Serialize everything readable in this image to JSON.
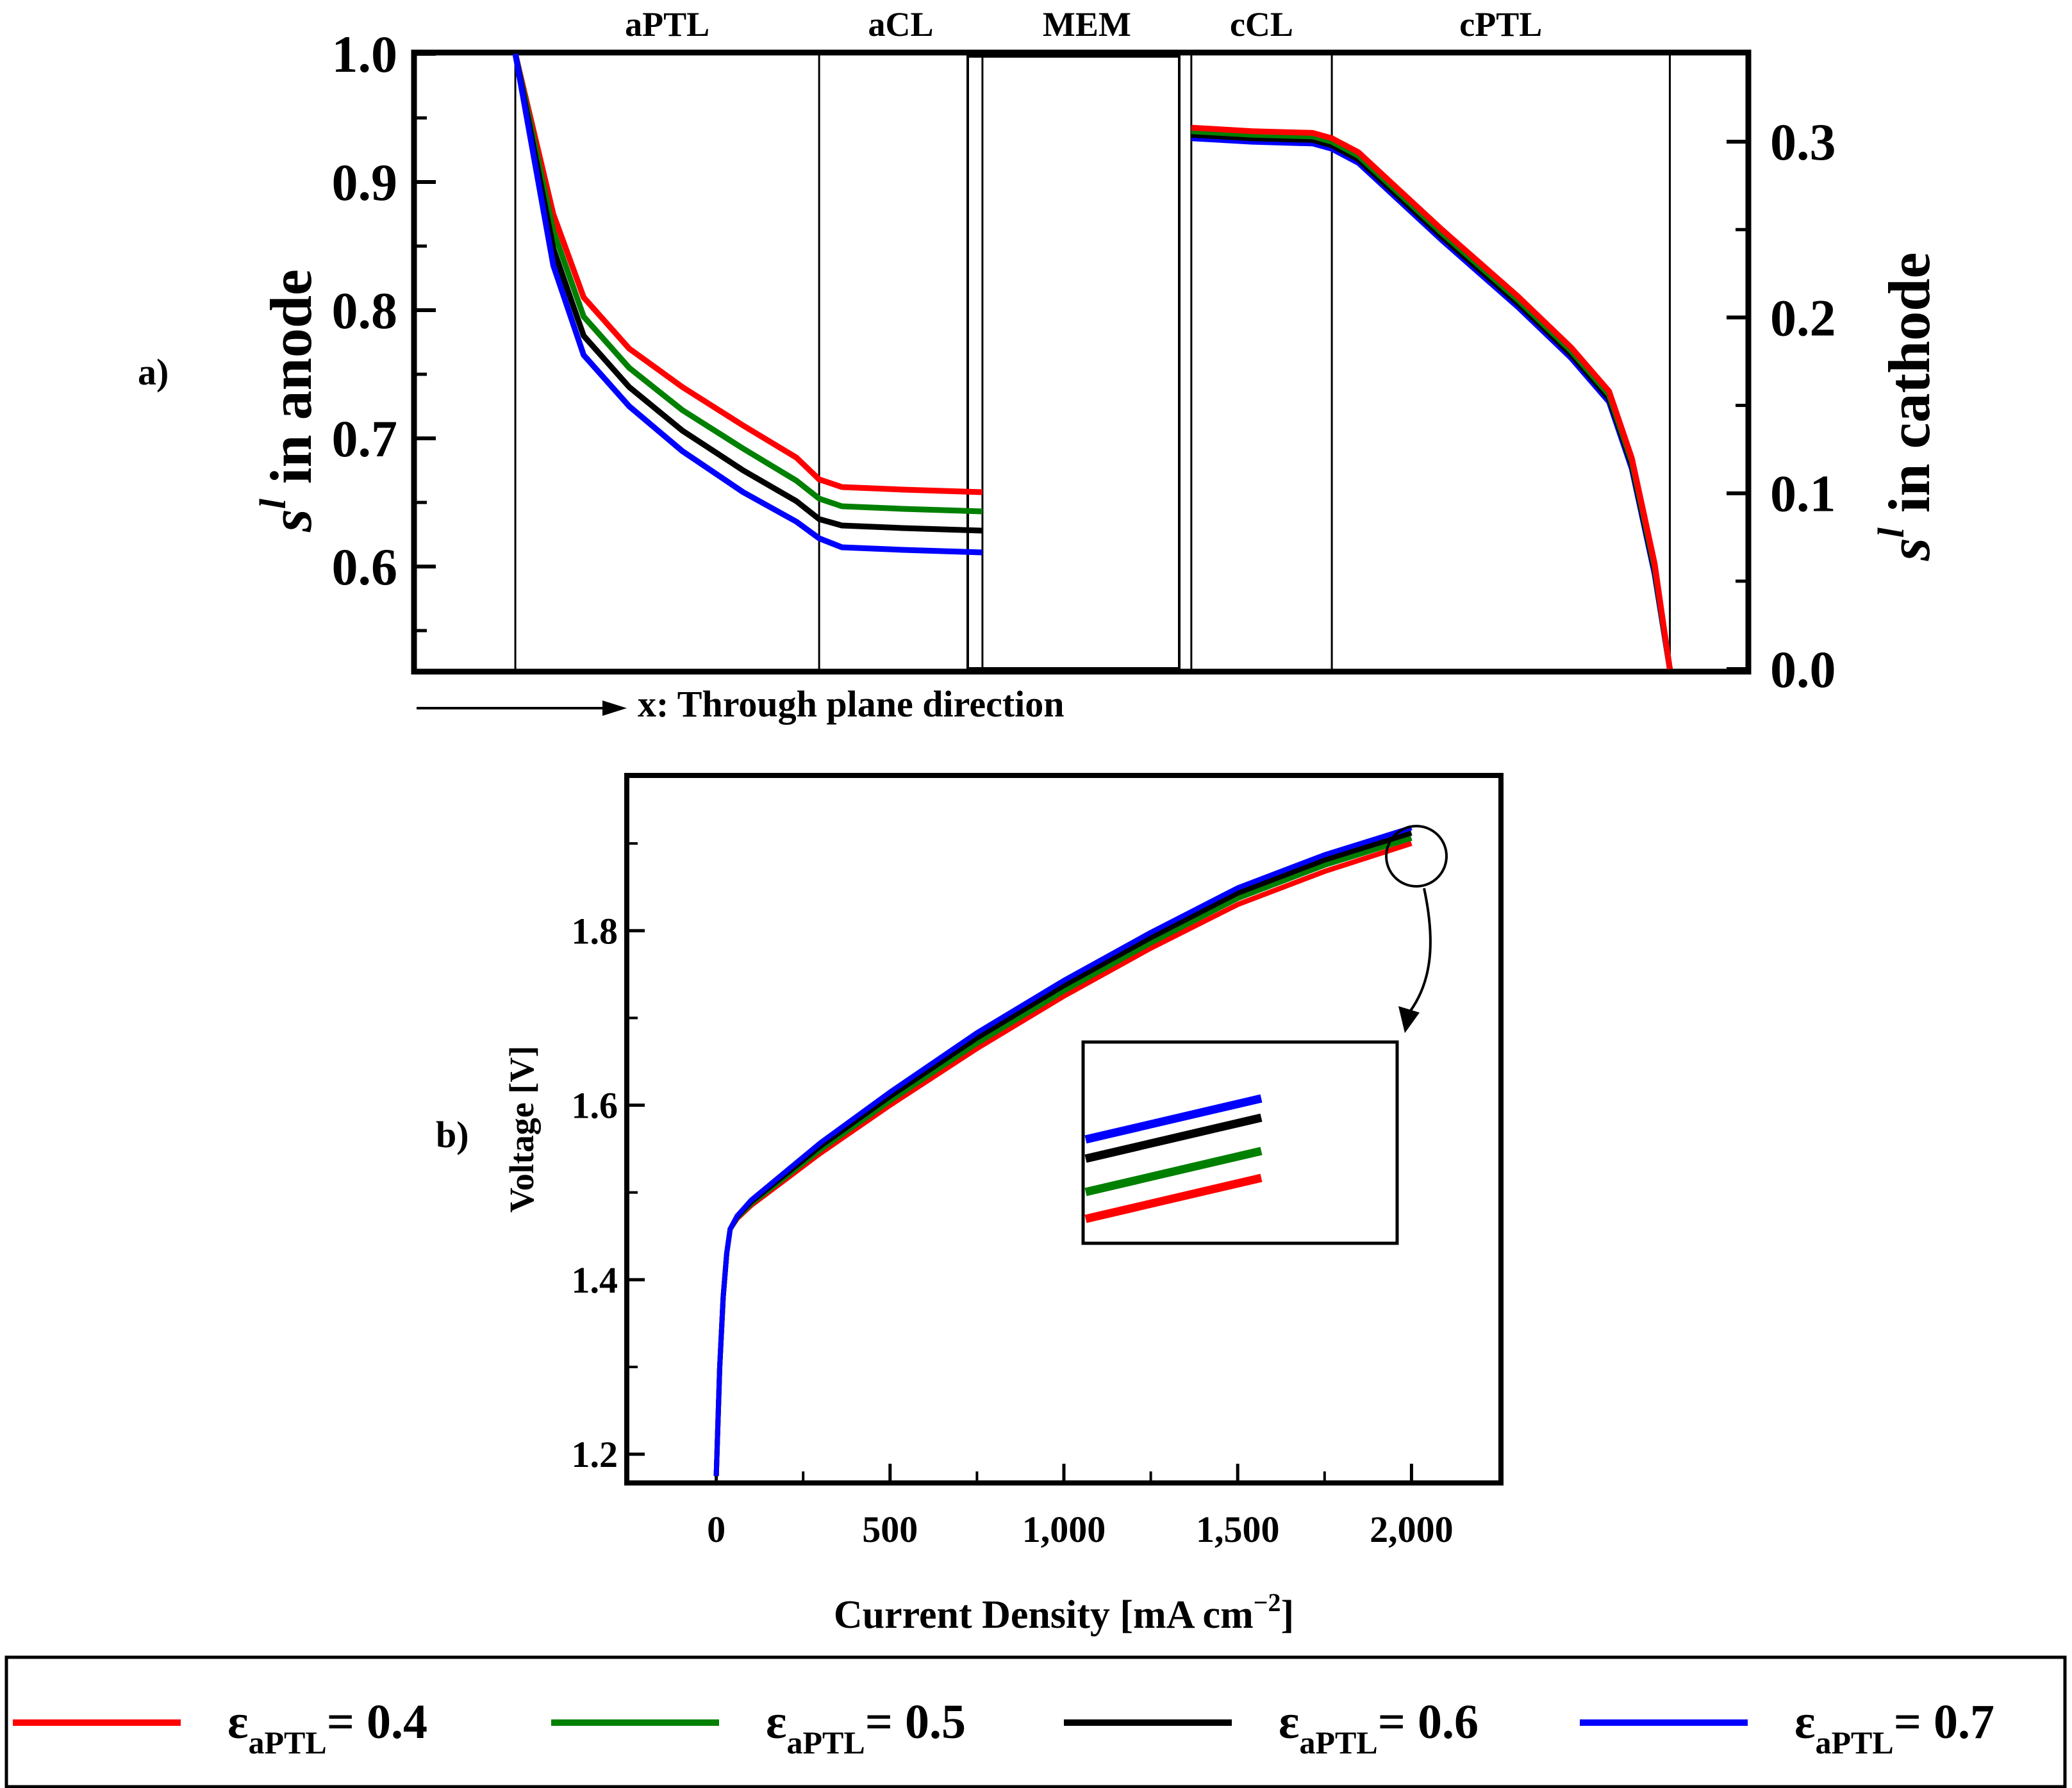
{
  "panel_labels": {
    "a": "a)",
    "b": "b)"
  },
  "direction_label": "x: Through plane direction",
  "colors": {
    "red": "#ff0000",
    "green": "#008000",
    "black": "#000000",
    "blue": "#0000ff"
  },
  "legend": {
    "prefix": "ε",
    "subscript": "aPTL",
    "entries": [
      {
        "value": "= 0.4",
        "color": "#ff0000"
      },
      {
        "value": "= 0.5",
        "color": "#008000"
      },
      {
        "value": "= 0.6",
        "color": "#000000"
      },
      {
        "value": "= 0.7",
        "color": "#0000ff"
      }
    ]
  },
  "chart_data": [
    {
      "id": "a",
      "type": "line",
      "regions": [
        "aPTL",
        "aCL",
        "MEM",
        "cCL",
        "cPTL"
      ],
      "region_boundaries": [
        0.13,
        0.53,
        0.745,
        1.02,
        1.205,
        1.65
      ],
      "xlim": [
        0.0,
        1.75
      ],
      "ylabel_left": {
        "base": "s",
        "sup": "l",
        "rest": " in anode"
      },
      "ylabel_right": {
        "base": "s",
        "sup": "l",
        "rest": " in cathode"
      },
      "y_left": {
        "lim": [
          0.52,
          1.0
        ],
        "ticks": [
          "1.0",
          "0.9",
          "0.8",
          "0.7",
          "0.6"
        ],
        "tick_values": [
          1.0,
          0.9,
          0.8,
          0.7,
          0.6
        ]
      },
      "y_right": {
        "lim": [
          0.0,
          0.35
        ],
        "ticks": [
          "0.3",
          "0.2",
          "0.1",
          "0.0"
        ],
        "tick_values": [
          0.3,
          0.2,
          0.1,
          0.0
        ]
      },
      "anode_series": [
        {
          "name": "εaPTL = 0.4",
          "color": "#ff0000",
          "points": [
            [
              0.13,
              1.0
            ],
            [
              0.18,
              0.875
            ],
            [
              0.22,
              0.81
            ],
            [
              0.28,
              0.77
            ],
            [
              0.35,
              0.74
            ],
            [
              0.43,
              0.71
            ],
            [
              0.5,
              0.685
            ],
            [
              0.53,
              0.668
            ],
            [
              0.56,
              0.662
            ],
            [
              0.64,
              0.66
            ],
            [
              0.745,
              0.658
            ]
          ]
        },
        {
          "name": "εaPTL = 0.5",
          "color": "#008000",
          "points": [
            [
              0.13,
              1.0
            ],
            [
              0.18,
              0.862
            ],
            [
              0.22,
              0.795
            ],
            [
              0.28,
              0.755
            ],
            [
              0.35,
              0.722
            ],
            [
              0.43,
              0.692
            ],
            [
              0.5,
              0.667
            ],
            [
              0.53,
              0.653
            ],
            [
              0.56,
              0.647
            ],
            [
              0.64,
              0.645
            ],
            [
              0.745,
              0.643
            ]
          ]
        },
        {
          "name": "εaPTL = 0.6",
          "color": "#000000",
          "points": [
            [
              0.13,
              1.0
            ],
            [
              0.18,
              0.848
            ],
            [
              0.22,
              0.78
            ],
            [
              0.28,
              0.74
            ],
            [
              0.35,
              0.706
            ],
            [
              0.43,
              0.675
            ],
            [
              0.5,
              0.651
            ],
            [
              0.53,
              0.637
            ],
            [
              0.56,
              0.632
            ],
            [
              0.64,
              0.63
            ],
            [
              0.745,
              0.628
            ]
          ]
        },
        {
          "name": "εaPTL = 0.7",
          "color": "#0000ff",
          "points": [
            [
              0.13,
              1.0
            ],
            [
              0.18,
              0.835
            ],
            [
              0.22,
              0.765
            ],
            [
              0.28,
              0.725
            ],
            [
              0.35,
              0.69
            ],
            [
              0.43,
              0.658
            ],
            [
              0.5,
              0.635
            ],
            [
              0.53,
              0.622
            ],
            [
              0.56,
              0.615
            ],
            [
              0.64,
              0.613
            ],
            [
              0.745,
              0.611
            ]
          ]
        }
      ],
      "cathode_series": [
        {
          "name": "εaPTL = 0.4",
          "color": "#ff0000",
          "points": [
            [
              1.02,
              0.308
            ],
            [
              1.1,
              0.306
            ],
            [
              1.18,
              0.305
            ],
            [
              1.205,
              0.302
            ],
            [
              1.24,
              0.294
            ],
            [
              1.28,
              0.278
            ],
            [
              1.35,
              0.25
            ],
            [
              1.45,
              0.212
            ],
            [
              1.52,
              0.183
            ],
            [
              1.57,
              0.158
            ],
            [
              1.6,
              0.12
            ],
            [
              1.63,
              0.06
            ],
            [
              1.65,
              0.0
            ]
          ]
        },
        {
          "name": "εaPTL = 0.5",
          "color": "#008000",
          "points": [
            [
              1.02,
              0.306
            ],
            [
              1.1,
              0.304
            ],
            [
              1.18,
              0.303
            ],
            [
              1.205,
              0.3
            ],
            [
              1.24,
              0.292
            ],
            [
              1.28,
              0.276
            ],
            [
              1.35,
              0.248
            ],
            [
              1.45,
              0.21
            ],
            [
              1.52,
              0.181
            ],
            [
              1.57,
              0.156
            ],
            [
              1.6,
              0.118
            ],
            [
              1.63,
              0.058
            ],
            [
              1.65,
              0.0
            ]
          ]
        },
        {
          "name": "εaPTL = 0.6",
          "color": "#000000",
          "points": [
            [
              1.02,
              0.304
            ],
            [
              1.1,
              0.302
            ],
            [
              1.18,
              0.301
            ],
            [
              1.205,
              0.298
            ],
            [
              1.24,
              0.29
            ],
            [
              1.28,
              0.274
            ],
            [
              1.35,
              0.246
            ],
            [
              1.45,
              0.208
            ],
            [
              1.52,
              0.179
            ],
            [
              1.57,
              0.154
            ],
            [
              1.6,
              0.116
            ],
            [
              1.63,
              0.056
            ],
            [
              1.65,
              0.0
            ]
          ]
        },
        {
          "name": "εaPTL = 0.7",
          "color": "#0000ff",
          "points": [
            [
              1.02,
              0.302
            ],
            [
              1.1,
              0.3
            ],
            [
              1.18,
              0.299
            ],
            [
              1.205,
              0.296
            ],
            [
              1.24,
              0.288
            ],
            [
              1.28,
              0.272
            ],
            [
              1.35,
              0.244
            ],
            [
              1.45,
              0.206
            ],
            [
              1.52,
              0.177
            ],
            [
              1.57,
              0.152
            ],
            [
              1.6,
              0.114
            ],
            [
              1.63,
              0.054
            ],
            [
              1.65,
              0.0
            ]
          ]
        }
      ]
    },
    {
      "id": "b",
      "type": "line",
      "xlabel": {
        "base": "Current Density [mA cm",
        "sup": "−2",
        "close": "]"
      },
      "ylabel": "Voltage [V]",
      "xlim": [
        -250,
        2250
      ],
      "ylim": [
        1.17,
        1.975
      ],
      "xticks": [
        "0",
        "500",
        "1,000",
        "1,500",
        "2,000"
      ],
      "xtick_values": [
        0,
        500,
        1000,
        1500,
        2000
      ],
      "yticks": [
        "1.2",
        "1.4",
        "1.6",
        "1.8"
      ],
      "ytick_values": [
        1.2,
        1.4,
        1.6,
        1.8
      ],
      "series": [
        {
          "name": "εaPTL = 0.4",
          "color": "#ff0000",
          "x": [
            0,
            10,
            20,
            30,
            40,
            60,
            100,
            200,
            300,
            500,
            750,
            1000,
            1250,
            1500,
            1750,
            2000
          ],
          "y": [
            1.175,
            1.3,
            1.38,
            1.43,
            1.458,
            1.47,
            1.485,
            1.515,
            1.545,
            1.6,
            1.665,
            1.725,
            1.78,
            1.83,
            1.868,
            1.9
          ]
        },
        {
          "name": "εaPTL = 0.5",
          "color": "#008000",
          "x": [
            0,
            10,
            20,
            30,
            40,
            60,
            100,
            200,
            300,
            500,
            750,
            1000,
            1250,
            1500,
            1750,
            2000
          ],
          "y": [
            1.175,
            1.3,
            1.38,
            1.43,
            1.458,
            1.471,
            1.487,
            1.518,
            1.549,
            1.605,
            1.671,
            1.731,
            1.786,
            1.837,
            1.875,
            1.906
          ]
        },
        {
          "name": "εaPTL = 0.6",
          "color": "#000000",
          "x": [
            0,
            10,
            20,
            30,
            40,
            60,
            100,
            200,
            300,
            500,
            750,
            1000,
            1250,
            1500,
            1750,
            2000
          ],
          "y": [
            1.175,
            1.3,
            1.38,
            1.43,
            1.458,
            1.472,
            1.489,
            1.521,
            1.553,
            1.61,
            1.677,
            1.737,
            1.792,
            1.843,
            1.881,
            1.912
          ]
        },
        {
          "name": "εaPTL = 0.7",
          "color": "#0000ff",
          "x": [
            0,
            10,
            20,
            30,
            40,
            60,
            100,
            200,
            300,
            500,
            750,
            1000,
            1250,
            1500,
            1750,
            2000
          ],
          "y": [
            1.175,
            1.3,
            1.38,
            1.43,
            1.458,
            1.473,
            1.491,
            1.524,
            1.557,
            1.615,
            1.683,
            1.743,
            1.798,
            1.849,
            1.887,
            1.918
          ]
        }
      ],
      "inset": {
        "zoom_center": [
          2000,
          1.908
        ]
      }
    }
  ]
}
